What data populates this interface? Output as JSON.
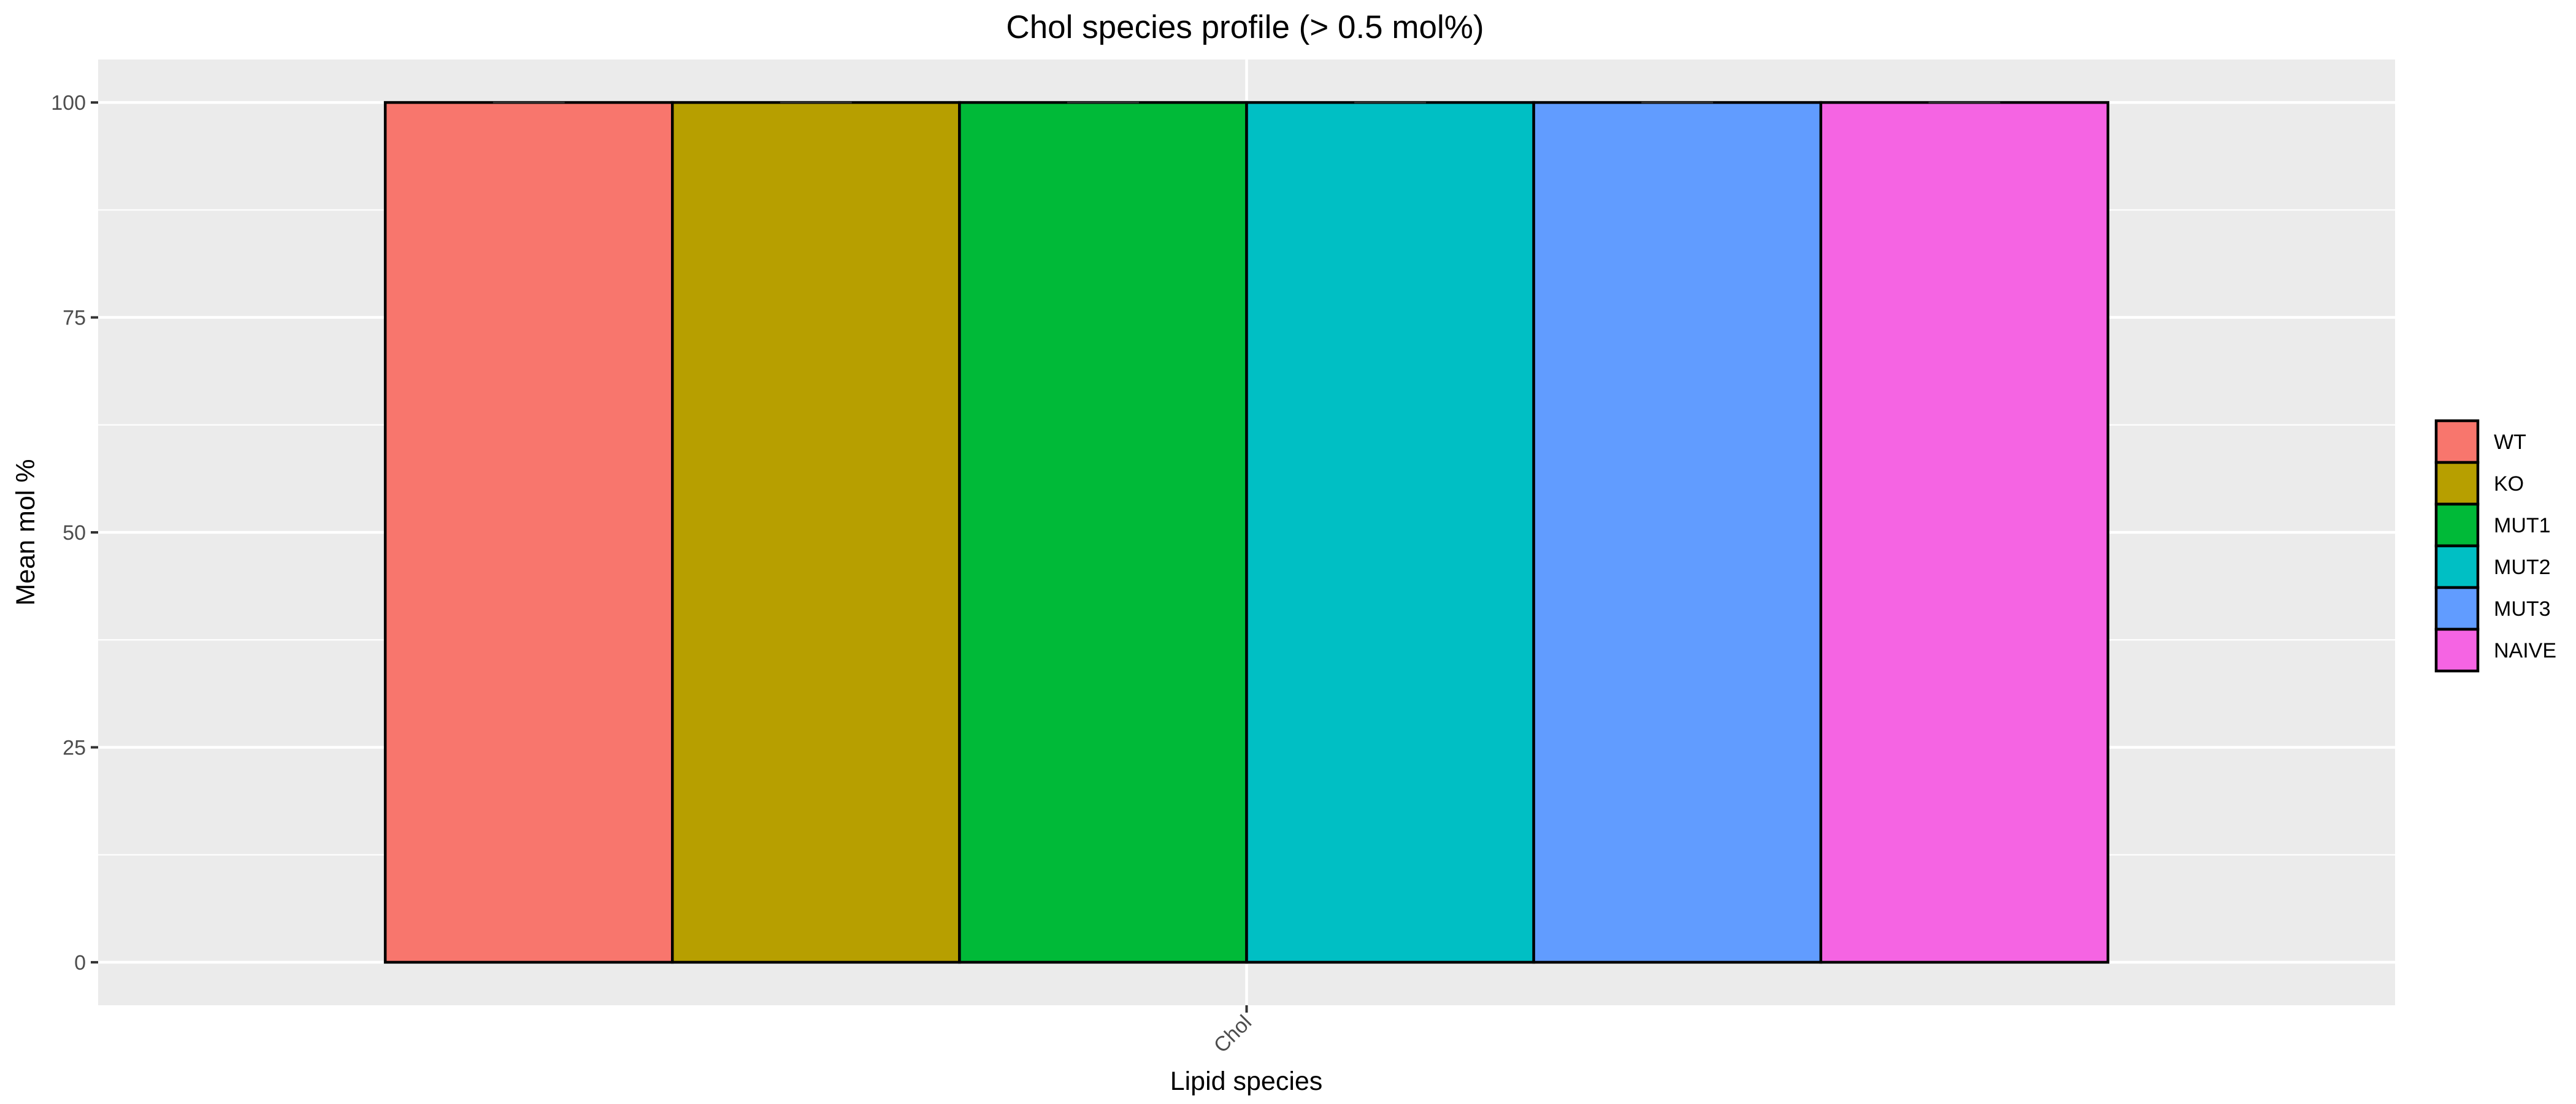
{
  "chart_data": {
    "type": "bar",
    "title": "Chol species profile (> 0.5 mol%)",
    "xlabel": "Lipid species",
    "ylabel": "Mean mol %",
    "categories": [
      "Chol"
    ],
    "series": [
      {
        "name": "WT",
        "values": [
          100
        ],
        "error": [
          0
        ],
        "color": "#F8766D"
      },
      {
        "name": "KO",
        "values": [
          100
        ],
        "error": [
          0
        ],
        "color": "#B79F00"
      },
      {
        "name": "MUT1",
        "values": [
          100
        ],
        "error": [
          0
        ],
        "color": "#00BA38"
      },
      {
        "name": "MUT2",
        "values": [
          100
        ],
        "error": [
          0
        ],
        "color": "#00BFC4"
      },
      {
        "name": "MUT3",
        "values": [
          100
        ],
        "error": [
          0
        ],
        "color": "#619CFF"
      },
      {
        "name": "NAIVE",
        "values": [
          100
        ],
        "error": [
          0
        ],
        "color": "#F564E3"
      }
    ],
    "ylim": [
      -5,
      105
    ],
    "yticks": [
      0,
      25,
      50,
      75,
      100
    ],
    "grid": true,
    "panel_background": "#EBEBEB",
    "legend_position": "right"
  }
}
